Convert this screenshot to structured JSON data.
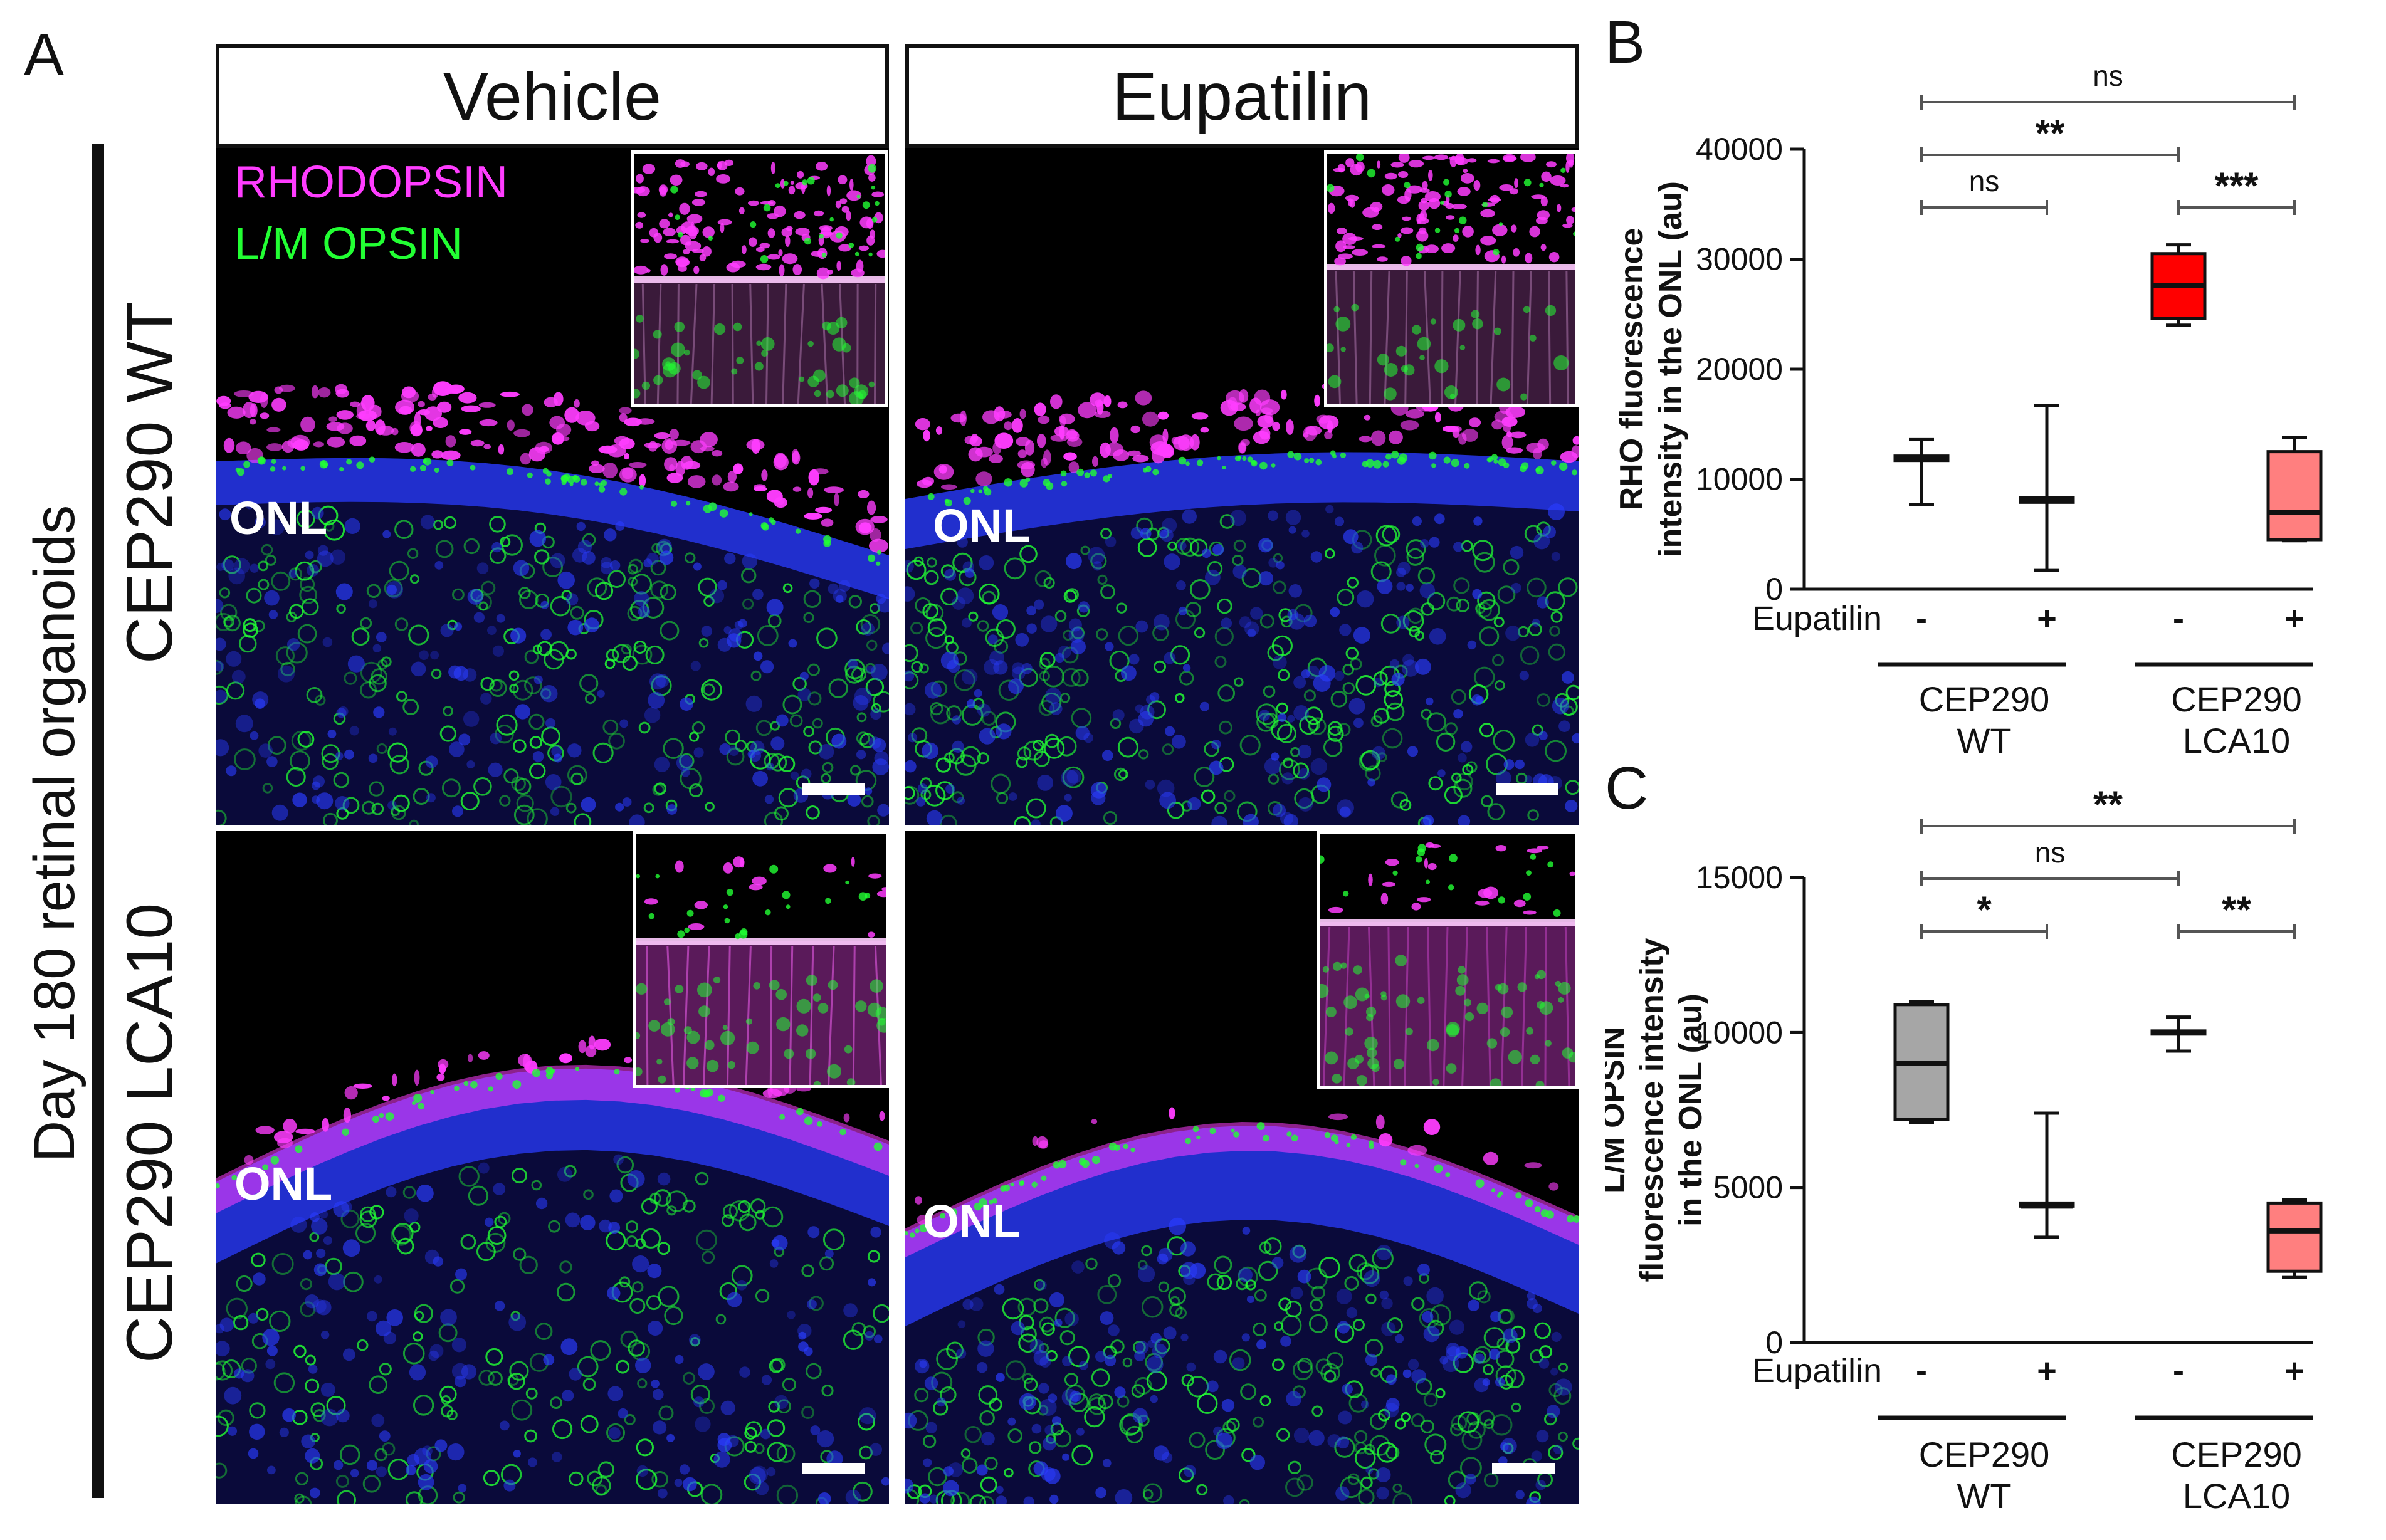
{
  "panel_a": {
    "letter": "A",
    "columns": [
      "Vehicle",
      "Eupatilin"
    ],
    "group_label": "Day 180 retinal organoids",
    "rows": [
      "CEP290 WT",
      "CEP290 LCA10"
    ],
    "legend": {
      "rhodopsin": "RHODOPSIN",
      "lm_opsin": "L/M OPSIN"
    },
    "onl_label": "ONL",
    "colors": {
      "rhodopsin": "#ff3dff",
      "lm_opsin": "#22ff33",
      "nuclei": "#2a3cff"
    }
  },
  "chart_data": [
    {
      "panel": "B",
      "type": "box",
      "ylabel_lines": [
        "RHO fluorescence",
        "intensity in the ONL (au)"
      ],
      "ylim": [
        0,
        40000
      ],
      "yticks": [
        0,
        10000,
        20000,
        30000,
        40000
      ],
      "treatment_label": "Eupatilin",
      "treatment_marks": [
        "-",
        "+",
        "-",
        "+"
      ],
      "groups": [
        {
          "label_lines": [
            "CEP290",
            "WT"
          ]
        },
        {
          "label_lines": [
            "CEP290",
            "LCA10"
          ]
        }
      ],
      "boxes": [
        {
          "min": 7700,
          "q1": 11700,
          "median": 11900,
          "q3": 12100,
          "max": 13600,
          "fill": "#ffffff"
        },
        {
          "min": 1700,
          "q1": 7900,
          "median": 8100,
          "q3": 8300,
          "max": 16700,
          "fill": "#ffffff"
        },
        {
          "min": 24000,
          "q1": 24600,
          "median": 27600,
          "q3": 30500,
          "max": 31300,
          "fill": "#ff0000"
        },
        {
          "min": 4400,
          "q1": 4500,
          "median": 7000,
          "q3": 12500,
          "max": 13800,
          "fill": "#ff7f7f"
        }
      ],
      "significance": [
        {
          "from": 0,
          "to": 3,
          "label": "ns",
          "level": 1
        },
        {
          "from": 0,
          "to": 2,
          "label": "**",
          "level": 2
        },
        {
          "from": 0,
          "to": 1,
          "label": "ns",
          "level": 3
        },
        {
          "from": 2,
          "to": 3,
          "label": "***",
          "level": 3
        }
      ]
    },
    {
      "panel": "C",
      "type": "box",
      "ylabel_lines": [
        "L/M OPSIN",
        "fluorescence intensity",
        "in the ONL (au)"
      ],
      "ylim": [
        0,
        15000
      ],
      "yticks": [
        0,
        5000,
        10000,
        15000
      ],
      "treatment_label": "Eupatilin",
      "treatment_marks": [
        "-",
        "+",
        "-",
        "+"
      ],
      "groups": [
        {
          "label_lines": [
            "CEP290",
            "WT"
          ]
        },
        {
          "label_lines": [
            "CEP290",
            "LCA10"
          ]
        }
      ],
      "boxes": [
        {
          "min": 7100,
          "q1": 7200,
          "median": 9000,
          "q3": 10900,
          "max": 11000,
          "fill": "#a6a6a6"
        },
        {
          "min": 3400,
          "q1": 4400,
          "median": 4400,
          "q3": 4500,
          "max": 7400,
          "fill": "#ffffff"
        },
        {
          "min": 9400,
          "q1": 9950,
          "median": 10000,
          "q3": 10050,
          "max": 10500,
          "fill": "#ffffff"
        },
        {
          "min": 2100,
          "q1": 2300,
          "median": 3600,
          "q3": 4500,
          "max": 4600,
          "fill": "#ff7f7f"
        }
      ],
      "significance": [
        {
          "from": 0,
          "to": 3,
          "label": "**",
          "level": 1
        },
        {
          "from": 0,
          "to": 2,
          "label": "ns",
          "level": 2
        },
        {
          "from": 0,
          "to": 1,
          "label": "*",
          "level": 3
        },
        {
          "from": 2,
          "to": 3,
          "label": "**",
          "level": 3
        }
      ]
    }
  ]
}
